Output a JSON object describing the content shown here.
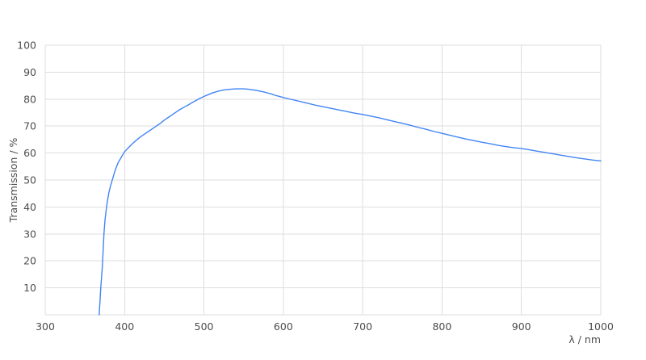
{
  "chart_data": {
    "type": "line",
    "title": "",
    "xlabel": "λ / nm",
    "ylabel": "Transmission / %",
    "xlim": [
      300,
      1000
    ],
    "ylim": [
      0,
      100
    ],
    "x_ticks": [
      300,
      400,
      500,
      600,
      700,
      800,
      900,
      1000
    ],
    "y_ticks": [
      10,
      20,
      30,
      40,
      50,
      60,
      70,
      80,
      90,
      100
    ],
    "grid": true,
    "legend": "none",
    "colors": {
      "line": "#4285f4",
      "grid": "#dedede",
      "text": "#4d4d4d",
      "background": "#ffffff"
    },
    "series": [
      {
        "name": "Transmission",
        "x": [
          368,
          369,
          370,
          371,
          372,
          373,
          374,
          375,
          376,
          378,
          380,
          382,
          385,
          388,
          390,
          392,
          396,
          400,
          405,
          410,
          415,
          420,
          425,
          430,
          435,
          440,
          445,
          450,
          455,
          460,
          465,
          470,
          475,
          480,
          485,
          490,
          495,
          500,
          505,
          510,
          515,
          520,
          525,
          530,
          535,
          540,
          545,
          550,
          555,
          560,
          565,
          570,
          575,
          580,
          585,
          590,
          595,
          600,
          610,
          620,
          630,
          640,
          650,
          660,
          670,
          680,
          690,
          700,
          710,
          720,
          730,
          740,
          750,
          760,
          770,
          780,
          790,
          800,
          810,
          820,
          830,
          840,
          850,
          860,
          870,
          880,
          890,
          900,
          910,
          920,
          930,
          940,
          950,
          960,
          970,
          980,
          990,
          1000
        ],
        "y": [
          0,
          5,
          10,
          14,
          18,
          24,
          30,
          34,
          37,
          41.5,
          45,
          47.5,
          50.5,
          53.5,
          55,
          56.5,
          58.5,
          60.5,
          62,
          63.5,
          64.8,
          66,
          67,
          68,
          69,
          70,
          71,
          72.2,
          73.2,
          74.2,
          75.2,
          76.2,
          77,
          77.8,
          78.7,
          79.5,
          80.3,
          81,
          81.6,
          82.2,
          82.7,
          83.1,
          83.4,
          83.6,
          83.7,
          83.8,
          83.8,
          83.8,
          83.7,
          83.5,
          83.3,
          83,
          82.7,
          82.3,
          81.9,
          81.4,
          81,
          80.6,
          79.9,
          79.2,
          78.5,
          77.8,
          77.2,
          76.6,
          76,
          75.4,
          74.8,
          74.3,
          73.7,
          73.1,
          72.4,
          71.7,
          71,
          70.3,
          69.5,
          68.8,
          68,
          67.3,
          66.6,
          65.9,
          65.2,
          64.6,
          64,
          63.5,
          62.9,
          62.4,
          62,
          61.7,
          61.2,
          60.7,
          60.2,
          59.7,
          59.2,
          58.7,
          58.2,
          57.8,
          57.4,
          57.1
        ]
      }
    ]
  }
}
